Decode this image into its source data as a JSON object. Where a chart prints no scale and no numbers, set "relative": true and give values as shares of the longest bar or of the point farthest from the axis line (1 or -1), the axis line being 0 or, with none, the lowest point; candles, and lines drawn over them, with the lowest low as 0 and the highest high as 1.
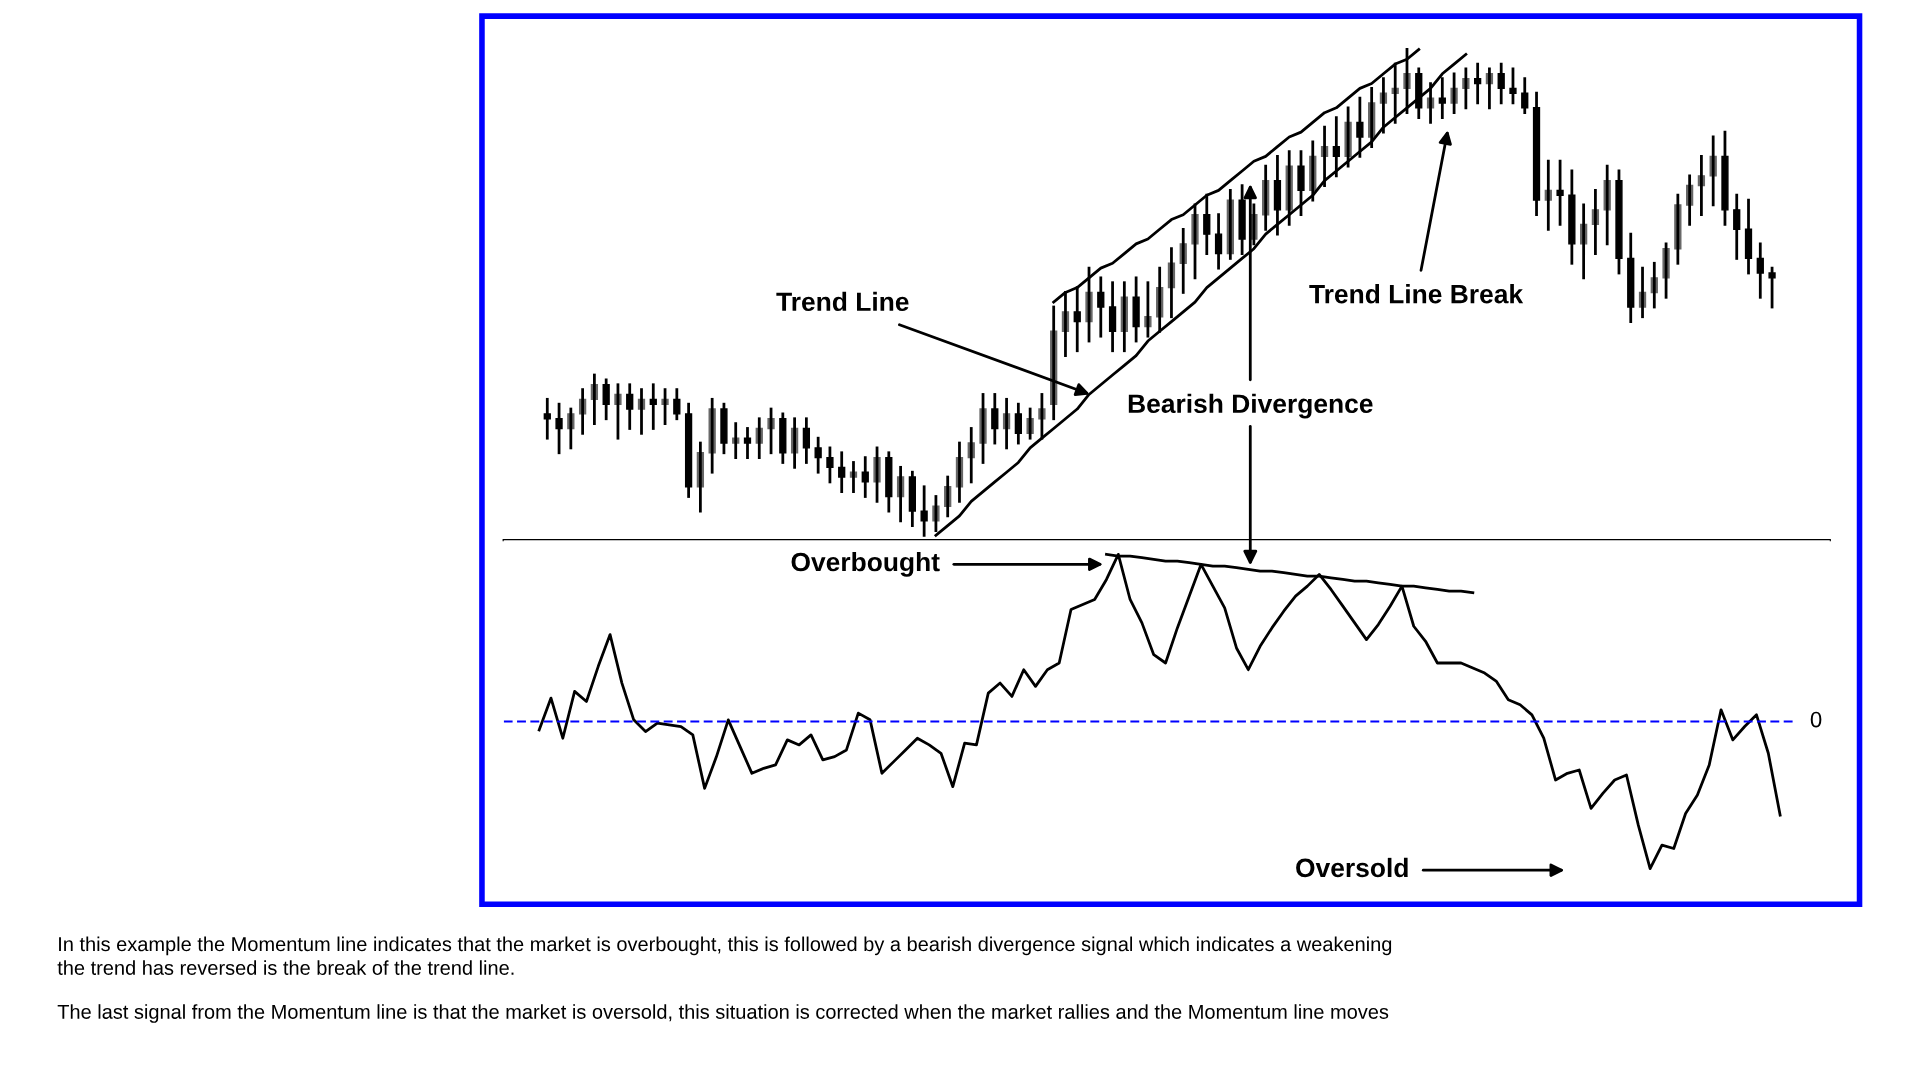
{
  "chart_data": [
    {
      "type": "candlestick",
      "relative": true,
      "tick_labels": false,
      "categories": [
        null,
        null,
        null,
        null,
        null,
        null,
        null,
        null,
        null,
        null,
        null,
        null,
        null,
        null,
        null,
        null,
        null,
        null,
        null,
        null,
        null,
        null,
        null,
        null,
        null,
        null,
        null,
        null,
        null,
        null,
        null,
        null,
        null,
        null,
        null,
        null,
        null,
        null,
        null,
        null,
        null,
        null,
        null,
        null,
        null,
        null,
        null,
        null,
        null,
        null,
        null,
        null,
        null,
        null,
        null,
        null,
        null,
        null,
        null,
        null,
        null,
        null,
        null,
        null,
        null,
        null,
        null,
        null,
        null,
        null,
        null,
        null,
        null,
        null,
        null,
        null,
        null,
        null,
        null,
        null,
        null,
        null,
        null,
        null,
        null,
        null,
        null,
        null,
        null,
        null,
        null,
        null,
        null,
        null,
        null,
        null,
        null,
        null,
        null,
        null,
        null,
        null,
        null,
        null,
        null
      ],
      "ohlc": [
        [
          0.25,
          0.28,
          0.2,
          0.24
        ],
        [
          0.24,
          0.27,
          0.17,
          0.22
        ],
        [
          0.22,
          0.26,
          0.18,
          0.25
        ],
        [
          0.25,
          0.3,
          0.21,
          0.28
        ],
        [
          0.28,
          0.33,
          0.23,
          0.31
        ],
        [
          0.31,
          0.32,
          0.24,
          0.27
        ],
        [
          0.27,
          0.31,
          0.2,
          0.29
        ],
        [
          0.29,
          0.31,
          0.22,
          0.26
        ],
        [
          0.26,
          0.3,
          0.21,
          0.28
        ],
        [
          0.28,
          0.31,
          0.22,
          0.27
        ],
        [
          0.27,
          0.3,
          0.23,
          0.28
        ],
        [
          0.28,
          0.3,
          0.24,
          0.25
        ],
        [
          0.25,
          0.27,
          0.08,
          0.1
        ],
        [
          0.1,
          0.19,
          0.05,
          0.17
        ],
        [
          0.17,
          0.28,
          0.13,
          0.26
        ],
        [
          0.26,
          0.27,
          0.17,
          0.19
        ],
        [
          0.19,
          0.23,
          0.16,
          0.2
        ],
        [
          0.2,
          0.22,
          0.16,
          0.19
        ],
        [
          0.19,
          0.24,
          0.16,
          0.22
        ],
        [
          0.22,
          0.26,
          0.17,
          0.24
        ],
        [
          0.24,
          0.25,
          0.15,
          0.17
        ],
        [
          0.17,
          0.24,
          0.14,
          0.22
        ],
        [
          0.22,
          0.24,
          0.15,
          0.18
        ],
        [
          0.18,
          0.2,
          0.13,
          0.16
        ],
        [
          0.16,
          0.18,
          0.11,
          0.14
        ],
        [
          0.14,
          0.17,
          0.09,
          0.12
        ],
        [
          0.12,
          0.15,
          0.09,
          0.13
        ],
        [
          0.13,
          0.16,
          0.08,
          0.11
        ],
        [
          0.11,
          0.18,
          0.07,
          0.16
        ],
        [
          0.16,
          0.17,
          0.05,
          0.08
        ],
        [
          0.08,
          0.14,
          0.03,
          0.12
        ],
        [
          0.12,
          0.13,
          0.02,
          0.05
        ],
        [
          0.05,
          0.1,
          0.0,
          0.03
        ],
        [
          0.03,
          0.08,
          0.01,
          0.06
        ],
        [
          0.06,
          0.12,
          0.04,
          0.1
        ],
        [
          0.1,
          0.19,
          0.07,
          0.16
        ],
        [
          0.16,
          0.22,
          0.11,
          0.19
        ],
        [
          0.19,
          0.29,
          0.15,
          0.26
        ],
        [
          0.26,
          0.29,
          0.19,
          0.22
        ],
        [
          0.22,
          0.28,
          0.18,
          0.25
        ],
        [
          0.25,
          0.27,
          0.19,
          0.21
        ],
        [
          0.21,
          0.26,
          0.2,
          0.24
        ],
        [
          0.24,
          0.29,
          0.2,
          0.26
        ],
        [
          0.27,
          0.47,
          0.24,
          0.42
        ],
        [
          0.42,
          0.5,
          0.37,
          0.46
        ],
        [
          0.46,
          0.51,
          0.38,
          0.44
        ],
        [
          0.44,
          0.55,
          0.4,
          0.5
        ],
        [
          0.5,
          0.53,
          0.41,
          0.47
        ],
        [
          0.47,
          0.52,
          0.38,
          0.42
        ],
        [
          0.42,
          0.52,
          0.38,
          0.49
        ],
        [
          0.49,
          0.53,
          0.4,
          0.43
        ],
        [
          0.43,
          0.52,
          0.41,
          0.45
        ],
        [
          0.45,
          0.55,
          0.42,
          0.51
        ],
        [
          0.51,
          0.59,
          0.45,
          0.56
        ],
        [
          0.56,
          0.63,
          0.5,
          0.6
        ],
        [
          0.6,
          0.68,
          0.53,
          0.66
        ],
        [
          0.66,
          0.7,
          0.58,
          0.62
        ],
        [
          0.62,
          0.66,
          0.55,
          0.58
        ],
        [
          0.58,
          0.71,
          0.57,
          0.69
        ],
        [
          0.69,
          0.72,
          0.58,
          0.61
        ],
        [
          0.61,
          0.68,
          0.6,
          0.66
        ],
        [
          0.66,
          0.76,
          0.63,
          0.73
        ],
        [
          0.73,
          0.78,
          0.62,
          0.67
        ],
        [
          0.67,
          0.79,
          0.64,
          0.76
        ],
        [
          0.76,
          0.79,
          0.66,
          0.71
        ],
        [
          0.71,
          0.81,
          0.69,
          0.78
        ],
        [
          0.78,
          0.84,
          0.72,
          0.8
        ],
        [
          0.8,
          0.86,
          0.74,
          0.78
        ],
        [
          0.78,
          0.88,
          0.76,
          0.85
        ],
        [
          0.85,
          0.9,
          0.78,
          0.82
        ],
        [
          0.82,
          0.92,
          0.8,
          0.89
        ],
        [
          0.89,
          0.94,
          0.83,
          0.91
        ],
        [
          0.91,
          0.97,
          0.85,
          0.92
        ],
        [
          0.92,
          1.0,
          0.87,
          0.95
        ],
        [
          0.95,
          0.96,
          0.86,
          0.88
        ],
        [
          0.88,
          0.93,
          0.85,
          0.9
        ],
        [
          0.9,
          0.94,
          0.86,
          0.89
        ],
        [
          0.89,
          0.95,
          0.87,
          0.92
        ],
        [
          0.92,
          0.96,
          0.88,
          0.94
        ],
        [
          0.94,
          0.97,
          0.89,
          0.93
        ],
        [
          0.93,
          0.96,
          0.88,
          0.95
        ],
        [
          0.95,
          0.97,
          0.89,
          0.92
        ],
        [
          0.92,
          0.96,
          0.89,
          0.91
        ],
        [
          0.91,
          0.94,
          0.87,
          0.88
        ],
        [
          0.88,
          0.91,
          0.66,
          0.69
        ],
        [
          0.69,
          0.77,
          0.63,
          0.71
        ],
        [
          0.71,
          0.77,
          0.64,
          0.7
        ],
        [
          0.7,
          0.75,
          0.56,
          0.6
        ],
        [
          0.6,
          0.68,
          0.53,
          0.64
        ],
        [
          0.64,
          0.71,
          0.58,
          0.67
        ],
        [
          0.67,
          0.76,
          0.6,
          0.73
        ],
        [
          0.73,
          0.75,
          0.54,
          0.57
        ],
        [
          0.57,
          0.62,
          0.44,
          0.47
        ],
        [
          0.47,
          0.55,
          0.45,
          0.5
        ],
        [
          0.5,
          0.56,
          0.47,
          0.53
        ],
        [
          0.53,
          0.6,
          0.49,
          0.59
        ],
        [
          0.59,
          0.7,
          0.56,
          0.68
        ],
        [
          0.68,
          0.74,
          0.64,
          0.72
        ],
        [
          0.72,
          0.78,
          0.66,
          0.74
        ],
        [
          0.74,
          0.82,
          0.68,
          0.78
        ],
        [
          0.78,
          0.83,
          0.64,
          0.67
        ],
        [
          0.67,
          0.7,
          0.57,
          0.63
        ],
        [
          0.63,
          0.69,
          0.54,
          0.57
        ],
        [
          0.57,
          0.6,
          0.49,
          0.54
        ],
        [
          0.54,
          0.55,
          0.47,
          0.53
        ]
      ],
      "series": [
        {
          "type": "line",
          "color": "#000000",
          "values": [
            null,
            null,
            null,
            null,
            null,
            null,
            null,
            null,
            null,
            null,
            null,
            null,
            null,
            null,
            null,
            null,
            null,
            null,
            null,
            null,
            null,
            null,
            null,
            null,
            null,
            null,
            null,
            null,
            null,
            null,
            null,
            null,
            null,
            0.0,
            0.02,
            0.04,
            0.07,
            0.09,
            0.11,
            0.13,
            0.15,
            0.18,
            0.2,
            0.22,
            0.24,
            0.26,
            0.29,
            0.31,
            0.33,
            0.35,
            0.37,
            0.4,
            0.42,
            0.44,
            0.46,
            0.48,
            0.51,
            0.53,
            0.55,
            0.57,
            0.59,
            0.62,
            0.64,
            0.66,
            0.68,
            0.7,
            0.73,
            0.75,
            0.77,
            0.79,
            0.81,
            0.84,
            0.86,
            0.88,
            0.9,
            0.92,
            0.95,
            0.97,
            0.99,
            null,
            null,
            null,
            null,
            null,
            null,
            null,
            null,
            null,
            null,
            null,
            null,
            null,
            null,
            null,
            null,
            null,
            null,
            null,
            null,
            null,
            null,
            null,
            null,
            null,
            null
          ]
        },
        {
          "type": "line",
          "color": "#000000",
          "values": [
            null,
            null,
            null,
            null,
            null,
            null,
            null,
            null,
            null,
            null,
            null,
            null,
            null,
            null,
            null,
            null,
            null,
            null,
            null,
            null,
            null,
            null,
            null,
            null,
            null,
            null,
            null,
            null,
            null,
            null,
            null,
            null,
            null,
            null,
            null,
            null,
            null,
            null,
            null,
            null,
            null,
            null,
            null,
            0.48,
            0.5,
            0.51,
            0.53,
            0.55,
            0.56,
            0.58,
            0.6,
            0.61,
            0.63,
            0.65,
            0.66,
            0.68,
            0.7,
            0.71,
            0.73,
            0.75,
            0.77,
            0.78,
            0.8,
            0.82,
            0.83,
            0.85,
            0.87,
            0.88,
            0.9,
            0.92,
            0.93,
            0.95,
            0.97,
            0.98,
            1.0,
            null,
            null,
            null,
            null,
            null,
            null,
            null,
            null,
            null,
            null,
            null,
            null,
            null,
            null,
            null,
            null,
            null,
            null,
            null,
            null,
            null,
            null,
            null,
            null,
            null,
            null,
            null,
            null,
            null,
            null
          ]
        }
      ],
      "annotations": [
        "Trend Line",
        "Bearish Divergence",
        "Trend Line Break"
      ]
    },
    {
      "type": "line",
      "relative": true,
      "tick_labels": false,
      "marker": "none",
      "line_style": "solid",
      "categories": [
        null,
        null,
        null,
        null,
        null,
        null,
        null,
        null,
        null,
        null,
        null,
        null,
        null,
        null,
        null,
        null,
        null,
        null,
        null,
        null,
        null,
        null,
        null,
        null,
        null,
        null,
        null,
        null,
        null,
        null,
        null,
        null,
        null,
        null,
        null,
        null,
        null,
        null,
        null,
        null,
        null,
        null,
        null,
        null,
        null,
        null,
        null,
        null,
        null,
        null,
        null,
        null,
        null,
        null,
        null,
        null,
        null,
        null,
        null,
        null,
        null,
        null,
        null,
        null,
        null,
        null,
        null,
        null,
        null,
        null,
        null,
        null,
        null,
        null,
        null,
        null,
        null,
        null,
        null,
        null,
        null,
        null,
        null,
        null,
        null,
        null,
        null,
        null,
        null,
        null,
        null,
        null,
        null,
        null,
        null,
        null,
        null,
        null,
        null,
        null,
        null,
        null,
        null,
        null,
        null,
        null
      ],
      "series": [
        {
          "color": "#000000",
          "values": [
            -0.05,
            0.14,
            -0.1,
            0.18,
            0.12,
            0.33,
            0.52,
            0.23,
            0.01,
            -0.06,
            -0.01,
            -0.02,
            -0.03,
            -0.08,
            -0.4,
            -0.21,
            0.01,
            -0.15,
            -0.31,
            -0.28,
            -0.26,
            -0.11,
            -0.14,
            -0.08,
            -0.23,
            -0.21,
            -0.17,
            0.05,
            0.01,
            -0.31,
            -0.24,
            -0.17,
            -0.1,
            -0.14,
            -0.19,
            -0.39,
            -0.13,
            -0.14,
            0.17,
            0.23,
            0.15,
            0.31,
            0.21,
            0.31,
            0.35,
            0.67,
            0.7,
            0.73,
            0.85,
            1.0,
            0.73,
            0.59,
            0.4,
            0.35,
            0.56,
            0.75,
            0.94,
            0.81,
            0.68,
            0.44,
            0.31,
            0.45,
            0.56,
            0.66,
            0.75,
            0.81,
            0.88,
            0.79,
            0.69,
            0.59,
            0.49,
            0.58,
            0.69,
            0.81,
            0.57,
            0.48,
            0.35,
            0.35,
            0.35,
            0.32,
            0.29,
            0.24,
            0.13,
            0.1,
            0.04,
            -0.1,
            -0.35,
            -0.31,
            -0.29,
            -0.52,
            -0.43,
            -0.35,
            -0.32,
            -0.62,
            -0.88,
            -0.74,
            -0.76,
            -0.55,
            -0.44,
            -0.26,
            0.07,
            -0.11,
            -0.03,
            0.04,
            -0.19,
            -0.56
          ]
        },
        {
          "type": "line",
          "color": "#000000",
          "values": [
            null,
            null,
            null,
            null,
            null,
            null,
            null,
            null,
            null,
            null,
            null,
            null,
            null,
            null,
            null,
            null,
            null,
            null,
            null,
            null,
            null,
            null,
            null,
            null,
            null,
            null,
            null,
            null,
            null,
            null,
            null,
            null,
            null,
            null,
            null,
            null,
            null,
            null,
            null,
            null,
            null,
            null,
            null,
            null,
            null,
            null,
            null,
            null,
            1.0,
            0.99,
            0.99,
            0.98,
            0.97,
            0.96,
            0.96,
            0.95,
            0.94,
            0.93,
            0.93,
            0.92,
            0.91,
            0.9,
            0.9,
            0.89,
            0.88,
            0.87,
            0.87,
            0.86,
            0.85,
            0.84,
            0.84,
            0.83,
            0.82,
            0.81,
            0.81,
            0.8,
            0.79,
            0.78,
            0.78,
            0.77,
            null,
            null,
            null,
            null,
            null,
            null,
            null,
            null,
            null,
            null,
            null,
            null,
            null,
            null,
            null,
            null,
            null,
            null,
            null,
            null,
            null,
            null,
            null,
            null,
            null,
            null
          ]
        }
      ],
      "ref_lines": [
        {
          "axis": "y",
          "value": 0,
          "label": "0",
          "color": "#0000ff",
          "line_style": "dashed"
        }
      ],
      "annotations": [
        "Overbought",
        "Oversold",
        "In this example the Momentum line indicates that the market is overbought, this is followed by a bearish divergence signal which indicates a weakening\nthe trend has reversed is the break of the trend line.",
        "The last signal from the Momentum line is that the market is oversold, this situation is corrected when the market rallies and the Momentum line moves"
      ]
    }
  ]
}
